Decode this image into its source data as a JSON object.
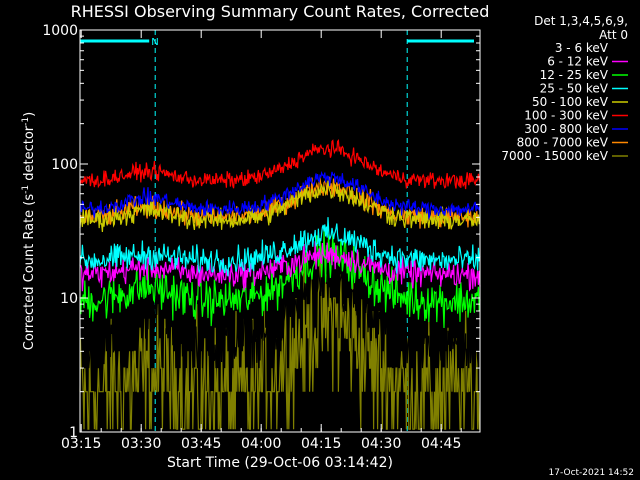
{
  "chart_data": {
    "type": "line",
    "title": "RHESSI Observing Summary Count Rates, Corrected",
    "xlabel": "Start Time (29-Oct-06 03:14:42)",
    "ylabel_main": "Corrected Count Rate (s",
    "ylabel_sup1": "-1",
    "ylabel_mid": " detector",
    "ylabel_sup2": "-1",
    "ylabel_end": ")",
    "yscale": "log",
    "ylim": [
      1,
      1000
    ],
    "xlim_minutes": [
      0,
      100
    ],
    "x_ticks": [
      {
        "label": "03:15",
        "min": 0.3
      },
      {
        "label": "03:30",
        "min": 15.3
      },
      {
        "label": "03:45",
        "min": 30.3
      },
      {
        "label": "04:00",
        "min": 45.3
      },
      {
        "label": "04:15",
        "min": 60.3
      },
      {
        "label": "04:30",
        "min": 75.3
      },
      {
        "label": "04:45",
        "min": 90.3
      }
    ],
    "y_ticks": [
      {
        "label": "1",
        "value": 1
      },
      {
        "label": "10",
        "value": 10
      },
      {
        "label": "100",
        "value": 100
      },
      {
        "label": "1000",
        "value": 1000
      }
    ],
    "legend_header": [
      "Det 1,3,4,5,6,9,",
      "Att 0"
    ],
    "legend_position": "right",
    "flag_label": "N",
    "flags": [
      {
        "start_min": 0,
        "end_min": 18.8,
        "label": "N"
      },
      {
        "start_min": 81.8,
        "end_min": 100,
        "label": ""
      }
    ],
    "vertical_markers_min": [
      0,
      18.8,
      81.8,
      100
    ],
    "series": [
      {
        "name": "3 - 6 keV",
        "color": "#000000",
        "base": 4.5,
        "peak": 13,
        "bump": 9,
        "noise": 0.12
      },
      {
        "name": "6 - 12 keV",
        "color": "#ff00ff",
        "base": 15,
        "peak": 21,
        "bump": 17,
        "noise": 0.05
      },
      {
        "name": "12 - 25 keV",
        "color": "#00ff00",
        "base": 9.5,
        "peak": 21,
        "bump": 12,
        "noise": 0.08
      },
      {
        "name": "25 - 50 keV",
        "color": "#00ffff",
        "base": 19,
        "peak": 30,
        "bump": 21,
        "noise": 0.05
      },
      {
        "name": "50 - 100 keV",
        "color": "#cccc00",
        "base": 38,
        "peak": 65,
        "bump": 45,
        "noise": 0.04
      },
      {
        "name": "100 - 300 keV",
        "color": "#ff0000",
        "base": 75,
        "peak": 130,
        "bump": 88,
        "noise": 0.03
      },
      {
        "name": "300 - 800 keV",
        "color": "#0000ff",
        "base": 46,
        "peak": 80,
        "bump": 56,
        "noise": 0.03
      },
      {
        "name": "800 - 7000 keV",
        "color": "#ff8800",
        "base": 40,
        "peak": 70,
        "bump": 48,
        "noise": 0.04
      },
      {
        "name": "7000 - 15000 keV",
        "color": "#808000",
        "base": 1.9,
        "peak": 7,
        "bump": 2.6,
        "noise": 0.25
      }
    ],
    "timestamp": "17-Oct-2021 14:52"
  }
}
